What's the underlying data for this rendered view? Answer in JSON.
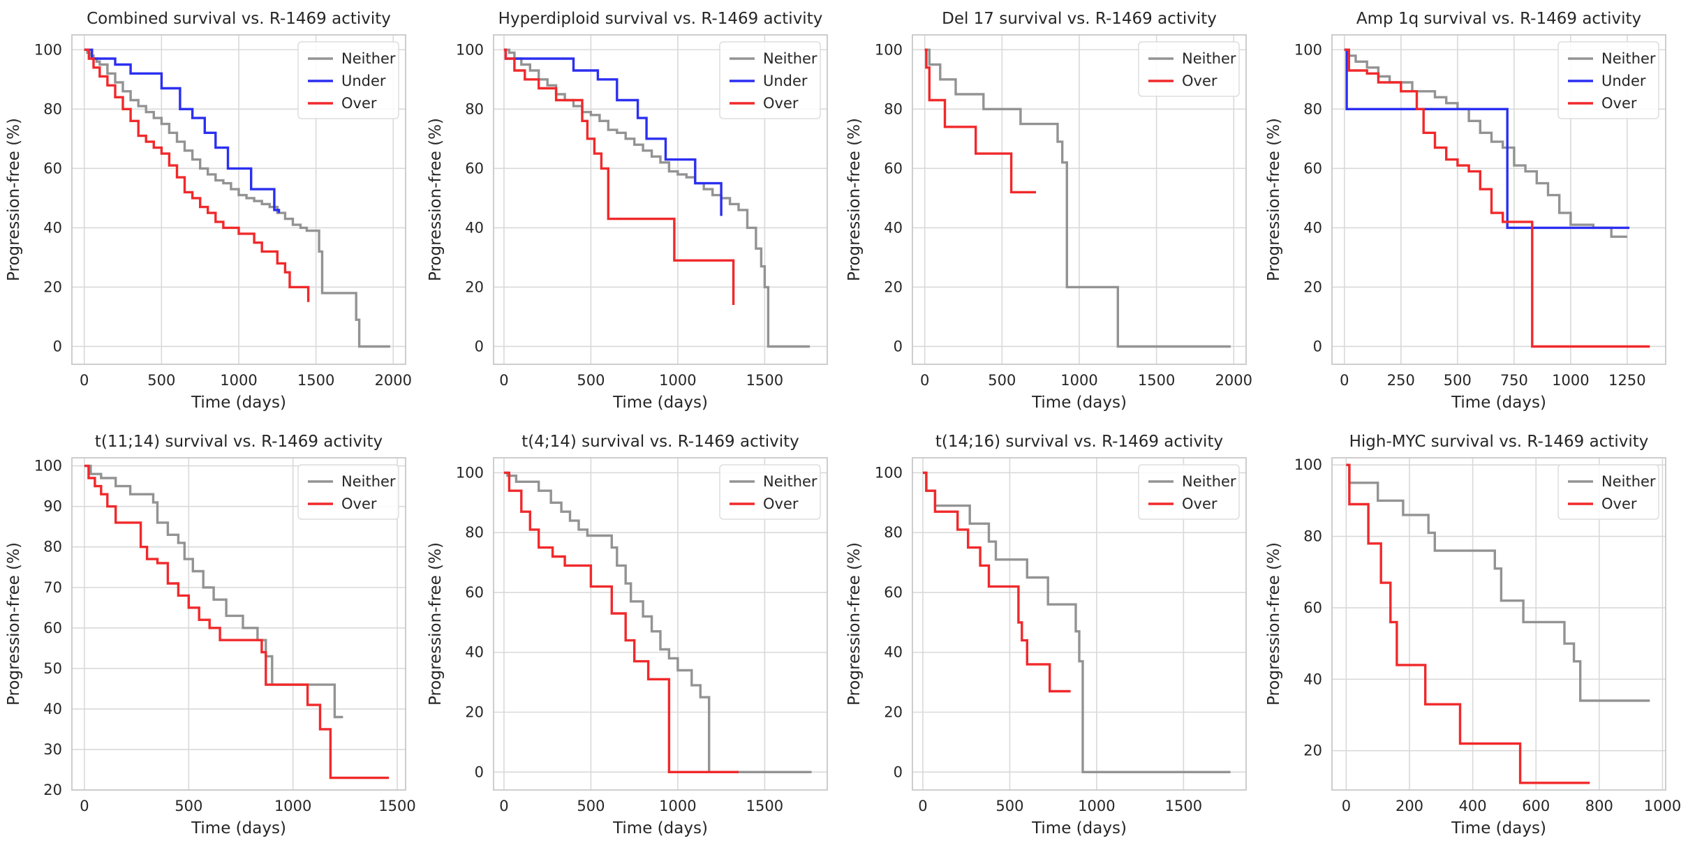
{
  "colors": {
    "Neither": "#939393",
    "Under": "#2b2ff0",
    "Over": "#f0292b",
    "grid": "#d9d9d9",
    "frame": "#c8c8c8"
  },
  "chart_data": [
    {
      "type": "line",
      "step": true,
      "title": "Combined survival vs. R-1469 activity",
      "xlabel": "Time (days)",
      "ylabel": "Progression-free (%)",
      "xlim": [
        -80,
        2080
      ],
      "ylim": [
        -6,
        105
      ],
      "xticks": [
        0,
        500,
        1000,
        1500,
        2000
      ],
      "yticks": [
        0,
        20,
        40,
        60,
        80,
        100
      ],
      "legend": "top-right",
      "grid": true,
      "series": [
        {
          "name": "Neither",
          "x": [
            0,
            20,
            40,
            60,
            80,
            100,
            150,
            200,
            250,
            300,
            350,
            400,
            450,
            500,
            550,
            600,
            650,
            700,
            750,
            800,
            850,
            900,
            950,
            1000,
            1050,
            1100,
            1150,
            1200,
            1250,
            1300,
            1350,
            1400,
            1440,
            1520,
            1540,
            1760,
            1780,
            1980
          ],
          "y": [
            100,
            99,
            98,
            97,
            96,
            95,
            92,
            89,
            86,
            83,
            81,
            79,
            77,
            75,
            72,
            69,
            66,
            63,
            60,
            58,
            56,
            55,
            53,
            51,
            50,
            49,
            48,
            47,
            45,
            43,
            41,
            40,
            39,
            32,
            18,
            9,
            0,
            0
          ]
        },
        {
          "name": "Under",
          "x": [
            0,
            50,
            200,
            300,
            500,
            620,
            700,
            780,
            850,
            930,
            1080,
            1230,
            1260
          ],
          "y": [
            100,
            97,
            95,
            92,
            87,
            80,
            77,
            72,
            67,
            60,
            53,
            46,
            45
          ]
        },
        {
          "name": "Over",
          "x": [
            0,
            30,
            60,
            100,
            150,
            200,
            250,
            300,
            350,
            400,
            450,
            500,
            550,
            600,
            650,
            700,
            750,
            800,
            850,
            900,
            950,
            1000,
            1100,
            1150,
            1250,
            1300,
            1330,
            1450
          ],
          "y": [
            100,
            97,
            94,
            91,
            88,
            84,
            80,
            76,
            71,
            69,
            67,
            65,
            61,
            57,
            52,
            50,
            47,
            45,
            42,
            40,
            40,
            38,
            35,
            32,
            28,
            25,
            20,
            15
          ]
        }
      ]
    },
    {
      "type": "line",
      "step": true,
      "title": "Hyperdiploid survival vs. R-1469 activity",
      "xlabel": "Time (days)",
      "ylabel": "Progression-free (%)",
      "xlim": [
        -60,
        1860
      ],
      "ylim": [
        -6,
        105
      ],
      "xticks": [
        0,
        500,
        1000,
        1500
      ],
      "yticks": [
        0,
        20,
        40,
        60,
        80,
        100
      ],
      "legend": "top-right",
      "grid": true,
      "series": [
        {
          "name": "Neither",
          "x": [
            0,
            30,
            60,
            100,
            150,
            200,
            250,
            300,
            350,
            400,
            450,
            500,
            550,
            600,
            650,
            700,
            750,
            800,
            850,
            900,
            950,
            1000,
            1050,
            1100,
            1150,
            1200,
            1250,
            1300,
            1350,
            1400,
            1450,
            1480,
            1500,
            1520,
            1760
          ],
          "y": [
            100,
            99,
            97,
            95,
            93,
            90,
            88,
            85,
            83,
            81,
            79,
            78,
            76,
            73,
            72,
            70,
            68,
            66,
            64,
            62,
            59,
            58,
            57,
            55,
            53,
            51,
            50,
            48,
            46,
            40,
            33,
            27,
            20,
            0,
            0
          ]
        },
        {
          "name": "Under",
          "x": [
            0,
            10,
            250,
            400,
            540,
            650,
            770,
            820,
            930,
            1100,
            1250
          ],
          "y": [
            100,
            97,
            97,
            93,
            90,
            83,
            77,
            70,
            63,
            55,
            44
          ]
        },
        {
          "name": "Over",
          "x": [
            0,
            10,
            60,
            120,
            200,
            300,
            450,
            480,
            520,
            560,
            600,
            980,
            1320
          ],
          "y": [
            100,
            97,
            93,
            90,
            87,
            83,
            76,
            70,
            65,
            60,
            43,
            29,
            14
          ]
        }
      ]
    },
    {
      "type": "line",
      "step": true,
      "title": "Del 17 survival vs. R-1469 activity",
      "xlabel": "Time (days)",
      "ylabel": "Progression-free (%)",
      "xlim": [
        -80,
        2080
      ],
      "ylim": [
        -6,
        105
      ],
      "xticks": [
        0,
        500,
        1000,
        1500,
        2000
      ],
      "yticks": [
        0,
        20,
        40,
        60,
        80,
        100
      ],
      "legend": "top-right",
      "grid": true,
      "series": [
        {
          "name": "Neither",
          "x": [
            0,
            30,
            100,
            200,
            380,
            620,
            860,
            890,
            920,
            1250,
            1980
          ],
          "y": [
            100,
            95,
            90,
            85,
            80,
            75,
            69,
            62,
            20,
            0,
            0
          ]
        },
        {
          "name": "Over",
          "x": [
            0,
            10,
            30,
            130,
            330,
            560,
            720
          ],
          "y": [
            100,
            94,
            83,
            74,
            65,
            52,
            52
          ]
        }
      ]
    },
    {
      "type": "line",
      "step": true,
      "title": "Amp 1q survival vs. R-1469 activity",
      "xlabel": "Time (days)",
      "ylabel": "Progression-free (%)",
      "xlim": [
        -55,
        1420
      ],
      "ylim": [
        -6,
        105
      ],
      "xticks": [
        0,
        250,
        500,
        750,
        1000,
        1250
      ],
      "yticks": [
        0,
        20,
        40,
        60,
        80,
        100
      ],
      "legend": "top-right",
      "grid": true,
      "series": [
        {
          "name": "Neither",
          "x": [
            0,
            20,
            50,
            100,
            150,
            200,
            300,
            400,
            450,
            500,
            550,
            600,
            650,
            700,
            750,
            800,
            850,
            900,
            950,
            1000,
            1100,
            1180,
            1250
          ],
          "y": [
            100,
            98,
            96,
            94,
            91,
            89,
            86,
            84,
            82,
            80,
            76,
            72,
            69,
            67,
            61,
            59,
            55,
            51,
            45,
            41,
            40,
            37,
            37
          ]
        },
        {
          "name": "Under",
          "x": [
            0,
            10,
            720,
            1260
          ],
          "y": [
            100,
            80,
            40,
            40
          ]
        },
        {
          "name": "Over",
          "x": [
            0,
            20,
            100,
            150,
            250,
            320,
            350,
            400,
            450,
            500,
            550,
            600,
            650,
            700,
            830,
            1350
          ],
          "y": [
            100,
            93,
            92,
            89,
            86,
            80,
            72,
            67,
            63,
            61,
            59,
            53,
            45,
            42,
            0,
            0
          ]
        }
      ]
    },
    {
      "type": "line",
      "step": true,
      "title": "t(11;14) survival vs. R-1469 activity",
      "xlabel": "Time (days)",
      "ylabel": "Progression-free (%)",
      "xlim": [
        -60,
        1540
      ],
      "ylim": [
        20,
        102
      ],
      "xticks": [
        0,
        500,
        1000,
        1500
      ],
      "yticks": [
        20,
        30,
        40,
        50,
        60,
        70,
        80,
        90,
        100
      ],
      "legend": "top-right",
      "grid": true,
      "series": [
        {
          "name": "Neither",
          "x": [
            0,
            30,
            80,
            150,
            220,
            330,
            350,
            400,
            450,
            480,
            520,
            570,
            620,
            680,
            760,
            830,
            870,
            900,
            1150,
            1200,
            1240
          ],
          "y": [
            100,
            98,
            97,
            95,
            93,
            91,
            86,
            83,
            81,
            77,
            74,
            70,
            67,
            63,
            60,
            57,
            53,
            46,
            46,
            38,
            38
          ]
        },
        {
          "name": "Over",
          "x": [
            0,
            20,
            50,
            80,
            110,
            150,
            270,
            300,
            350,
            400,
            450,
            500,
            550,
            600,
            650,
            850,
            870,
            1070,
            1130,
            1180,
            1460
          ],
          "y": [
            100,
            97,
            95,
            93,
            90,
            86,
            80,
            77,
            76,
            71,
            68,
            65,
            62,
            60,
            57,
            54,
            46,
            41,
            35,
            23,
            23
          ]
        }
      ]
    },
    {
      "type": "line",
      "step": true,
      "title": "t(4;14) survival vs. R-1469 activity",
      "xlabel": "Time (days)",
      "ylabel": "Progression-free (%)",
      "xlim": [
        -60,
        1860
      ],
      "ylim": [
        -6,
        105
      ],
      "xticks": [
        0,
        500,
        1000,
        1500
      ],
      "yticks": [
        0,
        20,
        40,
        60,
        80,
        100
      ],
      "legend": "top-right",
      "grid": true,
      "series": [
        {
          "name": "Neither",
          "x": [
            0,
            20,
            70,
            200,
            270,
            330,
            380,
            430,
            480,
            620,
            650,
            700,
            730,
            800,
            850,
            900,
            950,
            1000,
            1080,
            1130,
            1180,
            1770
          ],
          "y": [
            100,
            99,
            97,
            94,
            90,
            87,
            84,
            81,
            79,
            75,
            69,
            63,
            57,
            52,
            47,
            41,
            38,
            34,
            29,
            25,
            0,
            0
          ]
        },
        {
          "name": "Over",
          "x": [
            0,
            30,
            100,
            150,
            200,
            280,
            350,
            500,
            620,
            700,
            750,
            830,
            950,
            1350
          ],
          "y": [
            100,
            94,
            87,
            81,
            75,
            72,
            69,
            62,
            53,
            44,
            37,
            31,
            0,
            0
          ]
        }
      ]
    },
    {
      "type": "line",
      "step": true,
      "title": "t(14;16) survival vs. R-1469 activity",
      "xlabel": "Time (days)",
      "ylabel": "Progression-free (%)",
      "xlim": [
        -60,
        1860
      ],
      "ylim": [
        -6,
        105
      ],
      "xticks": [
        0,
        500,
        1000,
        1500
      ],
      "yticks": [
        0,
        20,
        40,
        60,
        80,
        100
      ],
      "legend": "top-right",
      "grid": true,
      "series": [
        {
          "name": "Neither",
          "x": [
            0,
            20,
            70,
            270,
            380,
            420,
            600,
            720,
            880,
            900,
            920,
            1770
          ],
          "y": [
            100,
            94,
            89,
            83,
            77,
            71,
            65,
            56,
            47,
            37,
            0,
            0
          ]
        },
        {
          "name": "Over",
          "x": [
            0,
            20,
            70,
            200,
            260,
            330,
            380,
            550,
            570,
            600,
            730,
            850
          ],
          "y": [
            100,
            94,
            87,
            81,
            75,
            69,
            62,
            50,
            44,
            36,
            27,
            27
          ]
        }
      ]
    },
    {
      "type": "line",
      "step": true,
      "title": "High-MYC survival vs. R-1469 activity",
      "xlabel": "Time (days)",
      "ylabel": "Progression-free (%)",
      "xlim": [
        -45,
        1010
      ],
      "ylim": [
        9,
        102
      ],
      "xticks": [
        0,
        200,
        400,
        600,
        800,
        1000
      ],
      "yticks": [
        20,
        40,
        60,
        80,
        100
      ],
      "legend": "top-right",
      "grid": true,
      "series": [
        {
          "name": "Neither",
          "x": [
            0,
            10,
            100,
            180,
            260,
            280,
            470,
            490,
            560,
            690,
            720,
            740,
            960
          ],
          "y": [
            100,
            95,
            90,
            86,
            81,
            76,
            71,
            62,
            56,
            50,
            45,
            34,
            34
          ]
        },
        {
          "name": "Over",
          "x": [
            0,
            10,
            70,
            110,
            140,
            160,
            250,
            360,
            550,
            770
          ],
          "y": [
            100,
            89,
            78,
            67,
            56,
            44,
            33,
            22,
            11,
            11
          ]
        }
      ]
    }
  ]
}
